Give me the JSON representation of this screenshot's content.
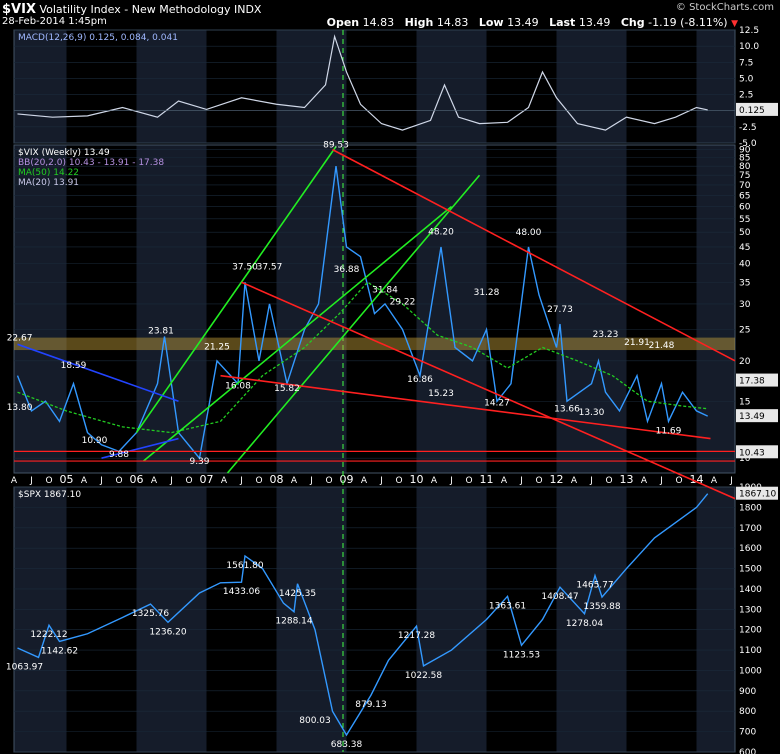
{
  "header": {
    "symbol": "$VIX",
    "name": "Volatility Index - New Methodology",
    "exchange": "INDX",
    "datetime": "28-Feb-2014 1:45pm",
    "open_label": "Open",
    "open": "14.83",
    "high_label": "High",
    "high": "14.83",
    "low_label": "Low",
    "low": "13.49",
    "last_label": "Last",
    "last": "13.49",
    "chg_label": "Chg",
    "chg": "-1.19 (-8.11%)",
    "chg_arrow": "▼",
    "brand": "© StockCharts.com"
  },
  "colors": {
    "grid": "#1a2a3a",
    "band": "#151c2a",
    "price": "#3399ff",
    "ma50": "#22cc22",
    "ma20": "#b0b0d0",
    "bb": "#6a4c8a",
    "trend_green": "#22ee22",
    "trend_red": "#ff2020",
    "trend_blue": "#2244ff",
    "highlight": "#c8a23a",
    "cursor": "#44ff44"
  },
  "x_axis": {
    "labels": [
      "A",
      "J",
      "O",
      "05",
      "A",
      "J",
      "O",
      "06",
      "A",
      "J",
      "O",
      "07",
      "A",
      "J",
      "O",
      "08",
      "A",
      "J",
      "O",
      "09",
      "A",
      "J",
      "O",
      "10",
      "A",
      "J",
      "O",
      "11",
      "A",
      "J",
      "O",
      "12",
      "A",
      "J",
      "O",
      "13",
      "A",
      "J",
      "O",
      "14",
      "A",
      "J"
    ]
  },
  "chart_data": [
    {
      "panel": "MACD",
      "type": "line",
      "legend": "MACD(12,26,9)",
      "legend_values": "0.125, 0.084, 0.041",
      "ylim": [
        -5,
        12.5
      ],
      "yticks": [
        "12.5",
        "10.0",
        "7.5",
        "5.0",
        "2.5",
        "0.0",
        "-2.5",
        "-5.0"
      ],
      "current_label": "0.125",
      "series": [
        {
          "name": "MACD",
          "x": [
            2004.3,
            2004.8,
            2005.3,
            2005.8,
            2006.3,
            2006.6,
            2007.0,
            2007.5,
            2008.0,
            2008.4,
            2008.7,
            2008.83,
            2009.0,
            2009.2,
            2009.5,
            2009.8,
            2010.2,
            2010.4,
            2010.6,
            2010.9,
            2011.3,
            2011.6,
            2011.8,
            2012.0,
            2012.3,
            2012.7,
            2013.0,
            2013.4,
            2013.7,
            2014.0,
            2014.16
          ],
          "y": [
            -0.5,
            -1,
            -0.8,
            0.5,
            -1,
            1.5,
            0.2,
            2,
            1,
            0.5,
            4,
            11.5,
            6,
            1,
            -2,
            -3,
            -1.5,
            4,
            -1,
            -2,
            -1.8,
            0.5,
            6,
            2,
            -2,
            -3,
            -1,
            -2,
            -1,
            0.5,
            0.125
          ]
        }
      ]
    },
    {
      "panel": "VIX",
      "type": "line",
      "legend": "$VIX (Weekly) 13.49",
      "legend_bb": "BB(20,2.0) 10.43 - 13.91 - 17.38",
      "legend_ma50": "MA(50) 14.22",
      "legend_ma20": "MA(20) 13.91",
      "yscale": "log",
      "ylim": [
        9,
        93
      ],
      "yticks": [
        "90",
        "85",
        "80",
        "75",
        "70",
        "65",
        "60",
        "55",
        "50",
        "45",
        "40",
        "35",
        "30",
        "25",
        "20",
        "15",
        "10"
      ],
      "right_labels": [
        "17.38",
        "13.49",
        "10.43"
      ],
      "annotations": [
        {
          "x": 2004.33,
          "y": 22.67,
          "label": "22.67"
        },
        {
          "x": 2004.33,
          "y": 13.8,
          "label": "13.80"
        },
        {
          "x": 2005.1,
          "y": 18.59,
          "label": "18.59"
        },
        {
          "x": 2005.4,
          "y": 10.9,
          "label": "10.90"
        },
        {
          "x": 2005.75,
          "y": 9.88,
          "label": "9.88"
        },
        {
          "x": 2006.35,
          "y": 23.81,
          "label": "23.81"
        },
        {
          "x": 2006.9,
          "y": 9.39,
          "label": "9.39"
        },
        {
          "x": 2007.15,
          "y": 21.25,
          "label": "21.25"
        },
        {
          "x": 2007.45,
          "y": 16.08,
          "label": "16.08"
        },
        {
          "x": 2007.55,
          "y": 37.5,
          "label": "37.50"
        },
        {
          "x": 2007.9,
          "y": 37.57,
          "label": "37.57"
        },
        {
          "x": 2008.15,
          "y": 15.82,
          "label": "15.82"
        },
        {
          "x": 2008.85,
          "y": 89.53,
          "label": "89.53"
        },
        {
          "x": 2009.0,
          "y": 36.88,
          "label": "36.88"
        },
        {
          "x": 2009.55,
          "y": 31.84,
          "label": "31.84"
        },
        {
          "x": 2009.8,
          "y": 29.22,
          "label": "29.22"
        },
        {
          "x": 2010.05,
          "y": 16.86,
          "label": "16.86"
        },
        {
          "x": 2010.35,
          "y": 48.2,
          "label": "48.20"
        },
        {
          "x": 2010.35,
          "y": 15.23,
          "label": "15.23"
        },
        {
          "x": 2011.0,
          "y": 31.28,
          "label": "31.28"
        },
        {
          "x": 2011.15,
          "y": 14.27,
          "label": "14.27"
        },
        {
          "x": 2011.6,
          "y": 48.0,
          "label": "48.00"
        },
        {
          "x": 2012.05,
          "y": 27.73,
          "label": "27.73"
        },
        {
          "x": 2012.15,
          "y": 13.66,
          "label": "13.66"
        },
        {
          "x": 2012.5,
          "y": 13.3,
          "label": "13.30"
        },
        {
          "x": 2012.7,
          "y": 23.23,
          "label": "23.23"
        },
        {
          "x": 2013.15,
          "y": 21.91,
          "label": "21.91"
        },
        {
          "x": 2013.5,
          "y": 21.48,
          "label": "21.48"
        },
        {
          "x": 2013.6,
          "y": 11.69,
          "label": "11.69"
        }
      ],
      "series": [
        {
          "name": "$VIX (Weekly)",
          "x": [
            2004.3,
            2004.5,
            2004.7,
            2004.9,
            2005.1,
            2005.3,
            2005.5,
            2005.75,
            2006.0,
            2006.3,
            2006.4,
            2006.6,
            2006.9,
            2007.15,
            2007.45,
            2007.55,
            2007.75,
            2007.9,
            2008.15,
            2008.4,
            2008.6,
            2008.85,
            2009.0,
            2009.2,
            2009.4,
            2009.55,
            2009.8,
            2010.05,
            2010.35,
            2010.55,
            2010.8,
            2011.0,
            2011.15,
            2011.35,
            2011.6,
            2011.75,
            2012.0,
            2012.05,
            2012.15,
            2012.5,
            2012.6,
            2012.7,
            2012.9,
            2013.15,
            2013.3,
            2013.5,
            2013.6,
            2013.8,
            2014.0,
            2014.16
          ],
          "y": [
            18,
            14,
            15,
            13,
            17,
            12,
            11,
            10.5,
            12,
            17,
            23.8,
            12,
            10,
            20,
            17,
            35,
            20,
            30,
            17,
            25,
            30,
            80,
            45,
            42,
            28,
            30,
            25,
            18,
            45,
            22,
            20,
            25,
            15,
            17,
            45,
            32,
            22,
            26,
            15,
            17,
            20,
            16,
            14,
            18,
            13,
            17,
            13,
            16,
            14,
            13.49
          ]
        },
        {
          "name": "MA(50)",
          "x": [
            2004.3,
            2005,
            2005.8,
            2006.5,
            2007.2,
            2007.8,
            2008.4,
            2008.9,
            2009.3,
            2009.8,
            2010.3,
            2010.8,
            2011.3,
            2011.8,
            2012.3,
            2012.8,
            2013.3,
            2013.8,
            2014.16
          ],
          "y": [
            16,
            14,
            12.5,
            12,
            13,
            18,
            22,
            28,
            35,
            30,
            24,
            22,
            19,
            22,
            20,
            18,
            15,
            14.5,
            14.22
          ]
        }
      ]
    },
    {
      "panel": "SPX",
      "type": "line",
      "legend": "$SPX 1867.10",
      "ylim": [
        600,
        1900
      ],
      "yticks": [
        "1900",
        "1800",
        "1700",
        "1600",
        "1500",
        "1400",
        "1300",
        "1200",
        "1100",
        "1000",
        "900",
        "800",
        "700",
        "600"
      ],
      "current_label": "1867.10",
      "annotations": [
        {
          "x": 2004.4,
          "y": 1063.97,
          "label": "1063.97"
        },
        {
          "x": 2004.9,
          "y": 1142.62,
          "label": "1142.62"
        },
        {
          "x": 2004.75,
          "y": 1222.12,
          "label": "1222.12"
        },
        {
          "x": 2006.2,
          "y": 1325.76,
          "label": "1325.76"
        },
        {
          "x": 2006.45,
          "y": 1236.2,
          "label": "1236.20"
        },
        {
          "x": 2007.55,
          "y": 1561.8,
          "label": "1561.80"
        },
        {
          "x": 2007.5,
          "y": 1433.06,
          "label": "1433.06"
        },
        {
          "x": 2008.3,
          "y": 1425.35,
          "label": "1425.35"
        },
        {
          "x": 2008.25,
          "y": 1288.14,
          "label": "1288.14"
        },
        {
          "x": 2008.55,
          "y": 800.03,
          "label": "800.03"
        },
        {
          "x": 2009.0,
          "y": 683.38,
          "label": "683.38"
        },
        {
          "x": 2009.35,
          "y": 879.13,
          "label": "879.13"
        },
        {
          "x": 2010.0,
          "y": 1217.28,
          "label": "1217.28"
        },
        {
          "x": 2010.1,
          "y": 1022.58,
          "label": "1022.58"
        },
        {
          "x": 2011.3,
          "y": 1363.61,
          "label": "1363.61"
        },
        {
          "x": 2011.5,
          "y": 1123.53,
          "label": "1123.53"
        },
        {
          "x": 2012.05,
          "y": 1408.47,
          "label": "1408.47"
        },
        {
          "x": 2012.4,
          "y": 1278.04,
          "label": "1278.04"
        },
        {
          "x": 2012.55,
          "y": 1465.77,
          "label": "1465.77"
        },
        {
          "x": 2012.65,
          "y": 1359.88,
          "label": "1359.88"
        }
      ],
      "series": [
        {
          "name": "$SPX",
          "x": [
            2004.3,
            2004.6,
            2004.75,
            2004.9,
            2005.3,
            2005.8,
            2006.2,
            2006.45,
            2006.9,
            2007.2,
            2007.5,
            2007.55,
            2007.8,
            2008.1,
            2008.25,
            2008.3,
            2008.55,
            2008.8,
            2009.0,
            2009.35,
            2009.6,
            2010.0,
            2010.1,
            2010.5,
            2011.0,
            2011.3,
            2011.5,
            2011.8,
            2012.05,
            2012.4,
            2012.55,
            2012.65,
            2013.0,
            2013.4,
            2013.8,
            2014.0,
            2014.16
          ],
          "y": [
            1110,
            1063.97,
            1222.12,
            1142.62,
            1180,
            1260,
            1325.76,
            1236.2,
            1380,
            1430,
            1433.06,
            1561.8,
            1500,
            1330,
            1288.14,
            1425.35,
            1200,
            800.03,
            683.38,
            879.13,
            1050,
            1217.28,
            1022.58,
            1100,
            1250,
            1363.61,
            1123.53,
            1250,
            1408.47,
            1278.04,
            1465.77,
            1359.88,
            1500,
            1650,
            1750,
            1800,
            1867.1
          ]
        }
      ]
    }
  ]
}
